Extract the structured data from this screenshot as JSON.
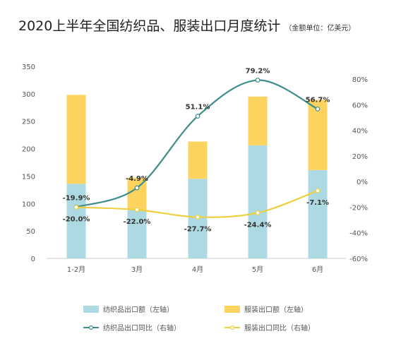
{
  "chart_data": {
    "type": "bar",
    "title": "2020上半年全国纺织品、服装出口月度统计",
    "unit": "（金额单位：亿美元）",
    "categories": [
      "1-2月",
      "3月",
      "4月",
      "5月",
      "6月"
    ],
    "bar_series": [
      {
        "name": "纺织品出口额（左轴）",
        "color": "#add9e3",
        "values": [
          136,
          88,
          145,
          206,
          161
        ]
      },
      {
        "name": "服装出口额（左轴）",
        "color": "#fcd35f",
        "values": [
          162,
          59,
          68,
          89,
          128
        ]
      }
    ],
    "line_series": [
      {
        "name": "纺织品出口同比（右轴）",
        "color": "#3e8e8a",
        "values": [
          -19.9,
          -4.9,
          51.1,
          79.2,
          56.7
        ],
        "labels": [
          "-19.9%",
          "-4.9%",
          "51.1%",
          "79.2%",
          "56.7%"
        ]
      },
      {
        "name": "服装出口同比（右轴）",
        "color": "#eecf3d",
        "values": [
          -20.0,
          -22.0,
          -27.7,
          -24.4,
          -7.1
        ],
        "labels": [
          "-20.0%",
          "-22.0%",
          "-27.7%",
          "-24.4%",
          "-7.1%"
        ]
      }
    ],
    "y_left": {
      "min": 0,
      "max": 350,
      "ticks": [
        0,
        50,
        100,
        150,
        200,
        250,
        300,
        350
      ]
    },
    "y_right": {
      "min": -60,
      "max": 90,
      "ticks": [
        -60,
        -40,
        -20,
        0,
        20,
        40,
        60,
        80
      ],
      "tick_labels": [
        "-60%",
        "-40%",
        "-20%",
        "0%",
        "20%",
        "40%",
        "60%",
        "80%"
      ]
    },
    "grid": false,
    "legend": "bottom",
    "colors": {
      "axis": "#cccccc",
      "tick_text": "#555555",
      "label_text": "#333333"
    }
  }
}
